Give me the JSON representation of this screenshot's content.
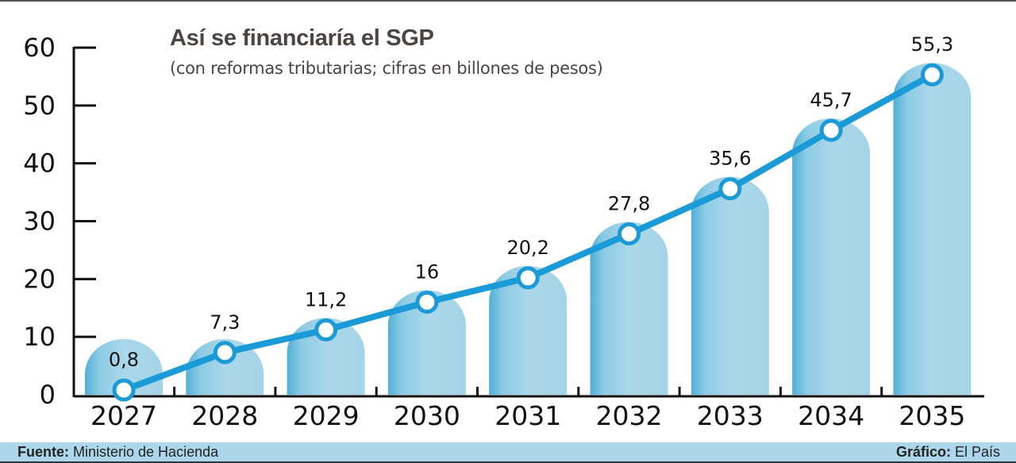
{
  "title": "Así se financiaría el SGP",
  "subtitle": "(con reformas tributarias; cifras en billones de pesos)",
  "footer": {
    "source_label": "Fuente:",
    "source_value": "Ministerio de Hacienda",
    "credit_label": "Gráfico:",
    "credit_value": "El País"
  },
  "colors": {
    "line": "#1a9ad6",
    "bar": "#a8d5e8",
    "bar_dark": "#5fb6d6",
    "footer": "#acd7ea"
  },
  "chart_data": {
    "type": "line",
    "title": "Así se financiaría el SGP",
    "subtitle": "(con reformas tributarias; cifras en billones de pesos)",
    "categories": [
      "2027",
      "2028",
      "2029",
      "2030",
      "2031",
      "2032",
      "2033",
      "2034",
      "2035"
    ],
    "values": [
      0.8,
      7.3,
      11.2,
      16,
      20.2,
      27.8,
      35.6,
      45.7,
      55.3
    ],
    "data_labels": [
      "0,8",
      "7,3",
      "11,2",
      "16",
      "20,2",
      "27,8",
      "35,6",
      "45,7",
      "55,3"
    ],
    "ylim": [
      0,
      60
    ],
    "yticks": [
      0,
      10,
      20,
      30,
      40,
      50,
      60
    ],
    "grid": false,
    "decorative_bars": true
  }
}
